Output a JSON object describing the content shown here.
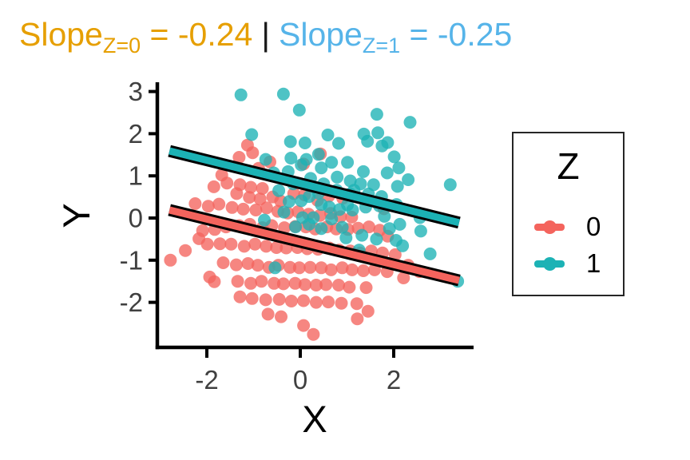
{
  "title": {
    "separator": "|",
    "parts": [
      {
        "text": "Slope",
        "sub": "Z=0",
        "rest": " = -0.24",
        "color": "#E69F00"
      },
      {
        "text": "Slope",
        "sub": "Z=1",
        "rest": " = -0.25",
        "color": "#56B4E9"
      }
    ]
  },
  "legend": {
    "title": "Z",
    "items": [
      {
        "label": "0",
        "color": "#F4645D"
      },
      {
        "label": "1",
        "color": "#1CB2B5"
      }
    ]
  },
  "chart_data": {
    "type": "scatter",
    "title": "Slope_Z=0 = -0.24 | Slope_Z=1 = -0.25",
    "xlabel": "X",
    "ylabel": "Y",
    "xlim": [
      -3.06,
      3.71
    ],
    "ylim": [
      -3.07,
      3.22
    ],
    "x_ticks": [
      -2,
      0,
      2
    ],
    "y_ticks": [
      3,
      2,
      1,
      0,
      -1,
      -2
    ],
    "grid": false,
    "legend_position": "right",
    "legend_title": "Z",
    "point_radius_px": 8,
    "point_opacity": 0.78,
    "axis_color": "#000000",
    "tick_label_color": "#404040",
    "series": [
      {
        "name": "0",
        "color": "#F4645D",
        "fit_line": {
          "x1": -2.8,
          "y1": 0.19,
          "x2": 3.4,
          "y2": -1.48,
          "slope": -0.24,
          "outline": "#000000"
        },
        "points": [
          [
            -1.13,
            1.73
          ],
          [
            -1.02,
            1.55
          ],
          [
            -1.31,
            1.44
          ],
          [
            0.43,
            1.52
          ],
          [
            -0.65,
            1.33
          ],
          [
            0.07,
            1.28
          ],
          [
            -0.89,
            1.18
          ],
          [
            -1.68,
            1.02
          ],
          [
            -1.85,
            0.74
          ],
          [
            -1.57,
            0.83
          ],
          [
            -1.29,
            0.79
          ],
          [
            -1.06,
            0.73
          ],
          [
            -0.81,
            0.7
          ],
          [
            -1.36,
            0.58
          ],
          [
            -1.09,
            0.49
          ],
          [
            -0.86,
            0.45
          ],
          [
            -0.59,
            0.5
          ],
          [
            -0.42,
            0.4
          ],
          [
            -0.14,
            0.58
          ],
          [
            0.09,
            0.55
          ],
          [
            0.37,
            0.42
          ],
          [
            0.61,
            0.52
          ],
          [
            0.91,
            0.47
          ],
          [
            -2.25,
            0.34
          ],
          [
            -1.97,
            0.28
          ],
          [
            -1.74,
            0.33
          ],
          [
            -1.46,
            0.25
          ],
          [
            -1.22,
            0.21
          ],
          [
            -0.95,
            0.19
          ],
          [
            -0.72,
            0.24
          ],
          [
            -0.48,
            0.16
          ],
          [
            -0.27,
            0.12
          ],
          [
            -0.05,
            0.15
          ],
          [
            0.18,
            0.09
          ],
          [
            0.42,
            0.06
          ],
          [
            0.65,
            0.11
          ],
          [
            0.86,
            0.03
          ],
          [
            1.1,
            0.02
          ],
          [
            1.79,
            0.22
          ],
          [
            -2.78,
            -1.0
          ],
          [
            -2.46,
            -0.77
          ],
          [
            -2.17,
            -0.49
          ],
          [
            -1.83,
            -0.27
          ],
          [
            -2.09,
            -0.3
          ],
          [
            -1.59,
            -0.21
          ],
          [
            -1.31,
            -0.18
          ],
          [
            -1.08,
            -0.15
          ],
          [
            -0.81,
            -0.23
          ],
          [
            -0.61,
            -0.18
          ],
          [
            -0.34,
            -0.23
          ],
          [
            -0.11,
            -0.2
          ],
          [
            0.12,
            -0.21
          ],
          [
            0.32,
            -0.26
          ],
          [
            0.57,
            -0.21
          ],
          [
            0.77,
            -0.26
          ],
          [
            1.02,
            -0.27
          ],
          [
            1.24,
            -0.24
          ],
          [
            1.47,
            -0.21
          ],
          [
            1.7,
            -0.29
          ],
          [
            1.87,
            -0.43
          ],
          [
            -1.99,
            -0.62
          ],
          [
            -1.72,
            -0.61
          ],
          [
            -1.48,
            -0.62
          ],
          [
            -1.2,
            -0.67
          ],
          [
            -0.97,
            -0.62
          ],
          [
            -0.73,
            -0.67
          ],
          [
            -0.51,
            -0.7
          ],
          [
            -0.3,
            -0.71
          ],
          [
            -0.06,
            -0.7
          ],
          [
            0.15,
            -0.73
          ],
          [
            0.38,
            -0.74
          ],
          [
            0.62,
            -0.71
          ],
          [
            0.83,
            -0.76
          ],
          [
            1.07,
            -0.78
          ],
          [
            1.28,
            -0.83
          ],
          [
            1.52,
            -0.78
          ],
          [
            1.76,
            -0.83
          ],
          [
            2.03,
            -0.87
          ],
          [
            -1.65,
            -1.06
          ],
          [
            -1.37,
            -1.11
          ],
          [
            -1.12,
            -1.08
          ],
          [
            -0.91,
            -1.12
          ],
          [
            -0.67,
            -1.17
          ],
          [
            -0.47,
            -1.12
          ],
          [
            -0.22,
            -1.17
          ],
          [
            -0.02,
            -1.18
          ],
          [
            0.21,
            -1.17
          ],
          [
            0.45,
            -1.18
          ],
          [
            0.66,
            -1.23
          ],
          [
            0.9,
            -1.18
          ],
          [
            1.11,
            -1.23
          ],
          [
            1.35,
            -1.25
          ],
          [
            1.59,
            -1.23
          ],
          [
            1.86,
            -1.27
          ],
          [
            -1.94,
            -1.4
          ],
          [
            -1.84,
            -1.51
          ],
          [
            -1.34,
            -1.5
          ],
          [
            -1.06,
            -1.55
          ],
          [
            -0.83,
            -1.5
          ],
          [
            -0.56,
            -1.55
          ],
          [
            -0.36,
            -1.56
          ],
          [
            -0.11,
            -1.55
          ],
          [
            0.1,
            -1.58
          ],
          [
            0.34,
            -1.59
          ],
          [
            0.55,
            -1.58
          ],
          [
            0.82,
            -1.59
          ],
          [
            1.05,
            -1.64
          ],
          [
            1.41,
            -1.65
          ],
          [
            2.31,
            -1.12
          ],
          [
            2.55,
            -1.27
          ],
          [
            2.21,
            -1.42
          ],
          [
            -1.29,
            -1.87
          ],
          [
            -1.03,
            -1.91
          ],
          [
            -0.74,
            -1.94
          ],
          [
            -0.45,
            -1.93
          ],
          [
            -0.19,
            -1.97
          ],
          [
            0.07,
            -1.96
          ],
          [
            0.34,
            -2.0
          ],
          [
            0.6,
            -1.99
          ],
          [
            0.88,
            -2.02
          ],
          [
            1.21,
            -2.03
          ],
          [
            -0.69,
            -2.28
          ],
          [
            -0.41,
            -2.34
          ],
          [
            0.07,
            -2.55
          ],
          [
            0.28,
            -2.76
          ],
          [
            1.22,
            -2.39
          ],
          [
            1.45,
            -2.21
          ]
        ]
      },
      {
        "name": "1",
        "color": "#1CB2B5",
        "fit_line": {
          "x1": -2.8,
          "y1": 1.59,
          "x2": 3.4,
          "y2": -0.11,
          "slope": -0.25,
          "outline": "#000000"
        },
        "points": [
          [
            -1.27,
            2.92
          ],
          [
            -0.36,
            2.94
          ],
          [
            -0.02,
            2.56
          ],
          [
            1.64,
            2.46
          ],
          [
            2.35,
            2.27
          ],
          [
            -1.04,
            1.98
          ],
          [
            0.59,
            1.97
          ],
          [
            1.36,
            1.99
          ],
          [
            1.66,
            2.02
          ],
          [
            1.87,
            1.79
          ],
          [
            -0.21,
            1.81
          ],
          [
            0.1,
            1.78
          ],
          [
            0.82,
            1.77
          ],
          [
            1.44,
            1.82
          ],
          [
            1.75,
            1.71
          ],
          [
            2.01,
            1.45
          ],
          [
            -0.74,
            1.39
          ],
          [
            -0.2,
            1.42
          ],
          [
            0.02,
            1.26
          ],
          [
            0.39,
            1.51
          ],
          [
            0.45,
            1.19
          ],
          [
            0.67,
            1.32
          ],
          [
            0.13,
            1.39
          ],
          [
            -0.26,
            1.1
          ],
          [
            -0.57,
            1.07
          ],
          [
            -0.15,
            0.81
          ],
          [
            0.22,
            0.94
          ],
          [
            0.5,
            0.81
          ],
          [
            0.79,
            0.97
          ],
          [
            1.01,
            1.32
          ],
          [
            1.35,
            1.1
          ],
          [
            1.86,
            1.07
          ],
          [
            2.11,
            1.19
          ],
          [
            2.31,
            0.91
          ],
          [
            1.07,
            0.88
          ],
          [
            1.29,
            0.81
          ],
          [
            1.57,
            0.79
          ],
          [
            2.08,
            0.75
          ],
          [
            3.21,
            0.79
          ],
          [
            -0.46,
            0.65
          ],
          [
            -0.24,
            0.39
          ],
          [
            0.02,
            0.41
          ],
          [
            0.19,
            0.51
          ],
          [
            0.39,
            0.59
          ],
          [
            0.78,
            0.66
          ],
          [
            1.15,
            0.66
          ],
          [
            1.46,
            0.57
          ],
          [
            1.74,
            0.51
          ],
          [
            1.69,
            0.29
          ],
          [
            2.06,
            0.32
          ],
          [
            0.45,
            0.32
          ],
          [
            0.62,
            0.26
          ],
          [
            0.84,
            0.2
          ],
          [
            1.01,
            0.31
          ],
          [
            1.12,
            0.19
          ],
          [
            1.4,
            0.26
          ],
          [
            1.8,
            0.04
          ],
          [
            -0.35,
            0.14
          ],
          [
            0.05,
            0.01
          ],
          [
            0.28,
            0.01
          ],
          [
            0.67,
            -0.02
          ],
          [
            -0.77,
            -0.05
          ],
          [
            -0.1,
            -0.21
          ],
          [
            0.19,
            -0.15
          ],
          [
            0.45,
            -0.25
          ],
          [
            0.9,
            -0.22
          ],
          [
            1.91,
            -0.25
          ],
          [
            2.13,
            -0.15
          ],
          [
            2.56,
            0.01
          ],
          [
            2.58,
            -0.31
          ],
          [
            1.32,
            -0.41
          ],
          [
            1.63,
            -0.5
          ],
          [
            2.05,
            -0.53
          ],
          [
            0.98,
            -0.47
          ],
          [
            1.26,
            -0.76
          ],
          [
            2.19,
            -0.66
          ],
          [
            2.78,
            -0.85
          ],
          [
            -0.54,
            -1.18
          ],
          [
            3.37,
            -1.5
          ],
          [
            1.07,
            0.57
          ]
        ]
      }
    ]
  }
}
